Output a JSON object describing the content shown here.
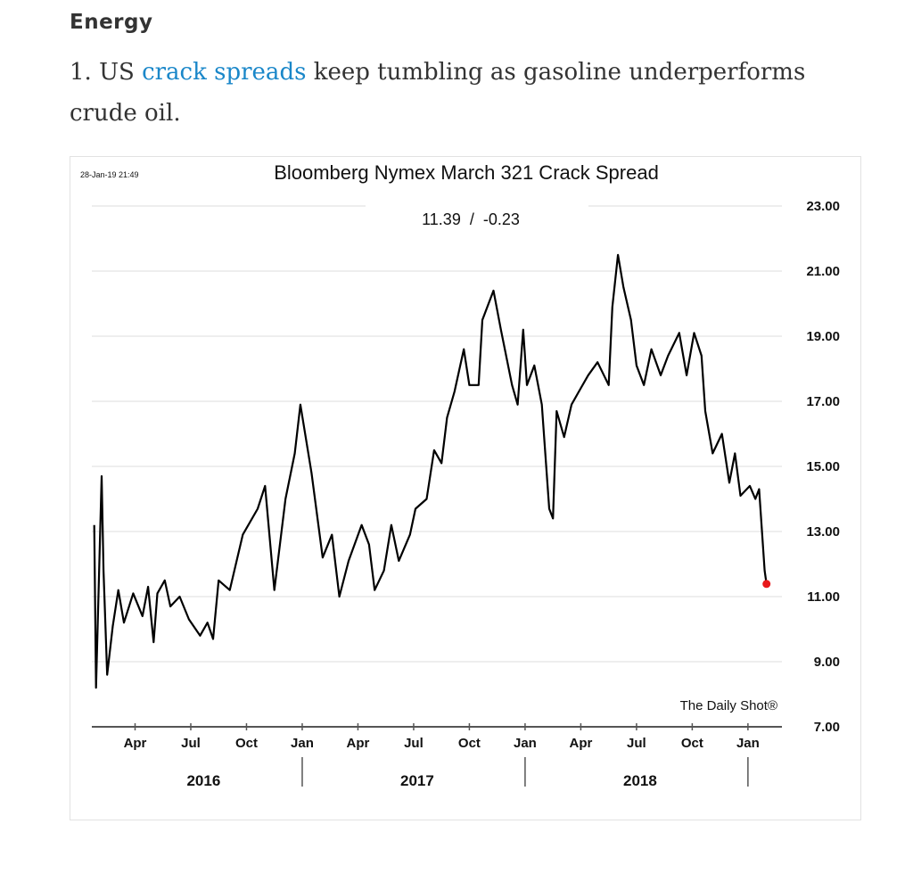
{
  "article": {
    "section_heading": "Energy",
    "paragraph_prefix": "1. US ",
    "link_text": "crack spreads",
    "paragraph_suffix": " keep tumbling as gasoline underperforms crude oil."
  },
  "chart_data": {
    "type": "line",
    "title": "Bloomberg Nymex March 321 Crack Spread",
    "timestamp": "28-Jan-19 21:49",
    "last_value_label": "11.39  /  -0.23",
    "watermark": "The Daily Shot®",
    "x_unit": "months since Jan 2016",
    "xlim": [
      0,
      38
    ],
    "ylim": [
      7,
      23
    ],
    "y_ticks": [
      "7.00",
      "9.00",
      "11.00",
      "13.00",
      "15.00",
      "17.00",
      "19.00",
      "21.00",
      "23.00"
    ],
    "y_tick_values": [
      7,
      9,
      11,
      13,
      15,
      17,
      19,
      21,
      23
    ],
    "x_ticks": [
      {
        "label": "Apr",
        "x": 3
      },
      {
        "label": "Jul",
        "x": 6
      },
      {
        "label": "Oct",
        "x": 9
      },
      {
        "label": "Jan",
        "x": 12
      },
      {
        "label": "Apr",
        "x": 15
      },
      {
        "label": "Jul",
        "x": 18
      },
      {
        "label": "Oct",
        "x": 21
      },
      {
        "label": "Jan",
        "x": 24
      },
      {
        "label": "Apr",
        "x": 27
      },
      {
        "label": "Jul",
        "x": 30
      },
      {
        "label": "Oct",
        "x": 33
      },
      {
        "label": "Jan",
        "x": 36
      }
    ],
    "year_labels": [
      {
        "label": "2016",
        "x": 6.5
      },
      {
        "label": "2017",
        "x": 18
      },
      {
        "label": "2018",
        "x": 30
      }
    ],
    "year_separators": [
      12,
      24,
      36
    ],
    "grid": true,
    "line_color": "#000000",
    "marker_color": "#e8191b",
    "series": [
      {
        "name": "Crack Spread",
        "x": [
          0.8,
          0.9,
          1.2,
          1.3,
          1.5,
          1.8,
          2.1,
          2.4,
          2.9,
          3.4,
          3.7,
          4.0,
          4.2,
          4.6,
          4.9,
          5.4,
          5.9,
          6.5,
          6.9,
          7.2,
          7.5,
          8.1,
          8.8,
          9.6,
          10.0,
          10.5,
          11.1,
          11.6,
          11.9,
          12.5,
          13.1,
          13.6,
          14.0,
          14.5,
          15.2,
          15.6,
          15.9,
          16.4,
          16.8,
          17.2,
          17.8,
          18.1,
          18.7,
          19.1,
          19.5,
          19.8,
          20.2,
          20.7,
          21.0,
          21.5,
          21.7,
          22.3,
          22.7,
          23.3,
          23.6,
          23.9,
          24.1,
          24.5,
          24.9,
          25.3,
          25.5,
          25.7,
          26.1,
          26.5,
          26.9,
          27.4,
          27.9,
          28.5,
          28.7,
          29.0,
          29.3,
          29.7,
          30.0,
          30.4,
          30.8,
          31.3,
          31.7,
          32.3,
          32.7,
          33.1,
          33.5,
          33.7,
          34.1,
          34.6,
          35.0,
          35.3,
          35.6,
          36.1,
          36.4,
          36.6,
          36.9,
          37.0
        ],
        "y": [
          13.2,
          8.2,
          14.7,
          11.8,
          8.6,
          10.1,
          11.2,
          10.2,
          11.1,
          10.4,
          11.3,
          9.6,
          11.1,
          11.5,
          10.7,
          11.0,
          10.3,
          9.8,
          10.2,
          9.7,
          11.5,
          11.2,
          12.9,
          13.7,
          14.4,
          11.2,
          14.0,
          15.4,
          16.9,
          14.8,
          12.2,
          12.9,
          11.0,
          12.1,
          13.2,
          12.6,
          11.2,
          11.8,
          13.2,
          12.1,
          12.9,
          13.7,
          14.0,
          15.5,
          15.1,
          16.5,
          17.3,
          18.6,
          17.5,
          17.5,
          19.5,
          20.4,
          19.2,
          17.5,
          16.9,
          19.2,
          17.5,
          18.1,
          16.9,
          13.7,
          13.4,
          16.7,
          15.9,
          16.9,
          17.3,
          17.8,
          18.2,
          17.5,
          19.9,
          21.5,
          20.5,
          19.5,
          18.1,
          17.5,
          18.6,
          17.8,
          18.4,
          19.1,
          17.8,
          19.1,
          18.4,
          16.7,
          15.4,
          16.0,
          14.5,
          15.4,
          14.1,
          14.4,
          14.0,
          14.3,
          11.8,
          11.39
        ]
      }
    ]
  }
}
